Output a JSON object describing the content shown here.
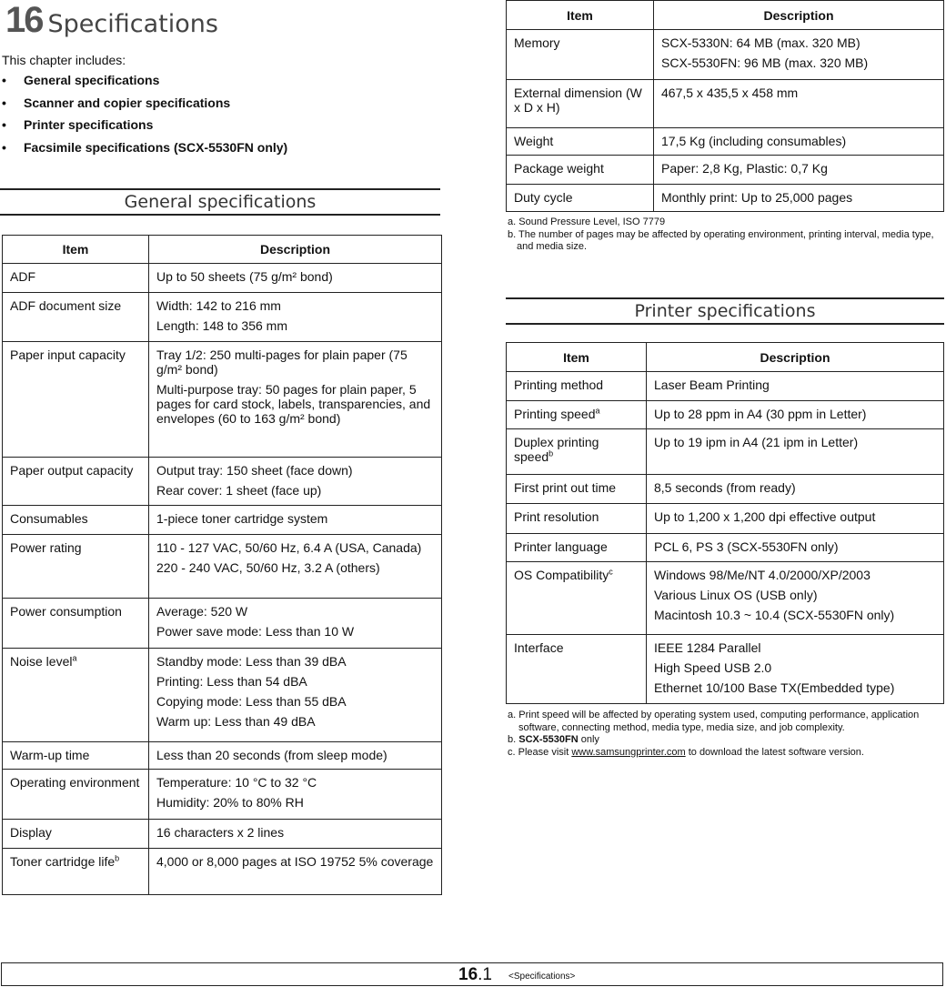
{
  "chapter": {
    "number": "16",
    "title": "Specifications",
    "intro": "This chapter includes:",
    "toc": [
      "General specifications",
      "Scanner and copier specifications",
      "Printer specifications",
      "Facsimile specifications (SCX-5530FN only)"
    ]
  },
  "general": {
    "heading": "General specifications",
    "col_item": "Item",
    "col_desc": "Description",
    "rows": [
      {
        "item": "ADF",
        "desc": [
          "Up to 50 sheets (75 g/m² bond)"
        ]
      },
      {
        "item": "ADF document size",
        "desc": [
          "Width: 142 to 216 mm",
          "Length: 148 to 356 mm"
        ]
      },
      {
        "item": "Paper input capacity",
        "desc": [
          "Tray 1/2: 250 multi-pages for plain paper (75 g/m² bond)",
          "Multi-purpose tray: 50 pages for plain paper, 5 pages for card stock, labels, transparencies, and envelopes (60 to 163 g/m² bond)"
        ]
      },
      {
        "item": "Paper output capacity",
        "desc": [
          "Output tray: 150 sheet (face down)",
          "Rear cover: 1 sheet (face up)"
        ]
      },
      {
        "item": "Consumables",
        "desc": [
          "1-piece toner cartridge system"
        ]
      },
      {
        "item": "Power rating",
        "desc": [
          "110 - 127 VAC, 50/60 Hz, 6.4 A (USA, Canada)",
          "220 - 240 VAC, 50/60 Hz, 3.2 A (others)"
        ]
      },
      {
        "item": "Power consumption",
        "desc": [
          "Average: 520 W",
          "Power save mode: Less than 10 W"
        ]
      },
      {
        "item": "Noise level",
        "sup": "a",
        "desc": [
          "Standby mode: Less than 39 dBA",
          "Printing: Less than 54 dBA",
          "Copying mode: Less than 55 dBA",
          "Warm up: Less than 49 dBA"
        ]
      },
      {
        "item": "Warm-up time",
        "desc": [
          "Less than 20 seconds (from sleep mode)"
        ]
      },
      {
        "item": "Operating environment",
        "desc": [
          "Temperature: 10 °C to 32 °C",
          "Humidity: 20% to 80% RH"
        ]
      },
      {
        "item": "Display",
        "desc": [
          "16 characters x 2 lines"
        ]
      },
      {
        "item": "Toner cartridge life",
        "sup": "b",
        "desc": [
          "4,000 or 8,000 pages at ISO 19752 5% coverage"
        ]
      }
    ]
  },
  "general_cont": {
    "col_item": "Item",
    "col_desc": "Description",
    "rows": [
      {
        "item": "Memory",
        "desc": [
          "SCX-5330N: 64 MB (max. 320 MB)",
          "SCX-5530FN: 96 MB (max. 320 MB)"
        ]
      },
      {
        "item": "External dimension (W x D x H)",
        "desc": [
          "467,5 x 435,5 x 458 mm"
        ]
      },
      {
        "item": "Weight",
        "desc": [
          "17,5 Kg (including consumables)"
        ]
      },
      {
        "item": "Package weight",
        "desc": [
          "Paper: 2,8 Kg, Plastic: 0,7 Kg"
        ]
      },
      {
        "item": "Duty cycle",
        "desc": [
          "Monthly print: Up to 25,000 pages"
        ]
      }
    ],
    "footnotes": [
      {
        "mark": "a.",
        "text": "Sound Pressure Level, ISO 7779"
      },
      {
        "mark": "b.",
        "text": "The number of pages may be affected by operating environment, printing interval, media type, and media size."
      }
    ]
  },
  "printer": {
    "heading": "Printer specifications",
    "col_item": "Item",
    "col_desc": "Description",
    "rows": [
      {
        "item": "Printing method",
        "desc": [
          "Laser Beam Printing"
        ]
      },
      {
        "item": "Printing speed",
        "sup": "a",
        "desc": [
          "Up to 28 ppm in A4 (30 ppm in Letter)"
        ]
      },
      {
        "item": "Duplex printing speed",
        "sup": "b",
        "desc": [
          "Up to 19 ipm in A4 (21 ipm in Letter)"
        ]
      },
      {
        "item": "First print out time",
        "desc": [
          "8,5 seconds (from ready)"
        ]
      },
      {
        "item": "Print resolution",
        "desc": [
          "Up to 1,200 x 1,200 dpi effective output"
        ]
      },
      {
        "item": "Printer language",
        "desc": [
          "PCL 6, PS 3 (SCX-5530FN only)"
        ]
      },
      {
        "item": "OS Compatibility",
        "sup": "c",
        "desc": [
          "Windows 98/Me/NT 4.0/2000/XP/2003",
          "Various Linux OS (USB only)",
          "Macintosh 10.3 ~ 10.4 (SCX-5530FN only)"
        ]
      },
      {
        "item": "Interface",
        "desc": [
          "IEEE 1284 Parallel",
          "High Speed USB 2.0",
          "Ethernet 10/100 Base TX(Embedded type)"
        ]
      }
    ],
    "footnotes": {
      "a": {
        "mark": "a.",
        "text": "Print speed will be affected by operating system used, computing performance, application software, connecting method, media type, media size, and job complexity."
      },
      "b": {
        "mark": "b.",
        "bold": "SCX-5530FN",
        "text": " only"
      },
      "c": {
        "mark": "c.",
        "pre": "Please visit ",
        "link": "www.samsungprinter.com",
        "post": " to download the latest software version."
      }
    }
  },
  "footer": {
    "page_major": "16",
    "page_minor": ".1",
    "label": "<Specifications>"
  }
}
